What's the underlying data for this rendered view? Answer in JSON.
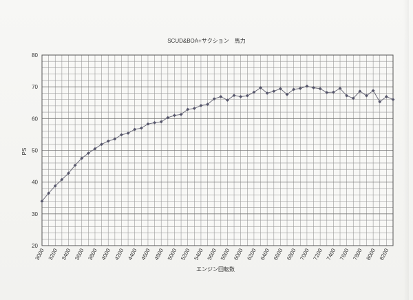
{
  "chart_data": {
    "type": "line",
    "title": "SCUD&BOA+サクション　馬力",
    "xlabel": "エンジン回転数",
    "ylabel": "PS",
    "xlim": [
      3000,
      8300
    ],
    "ylim": [
      20,
      80
    ],
    "grid": true,
    "x_tick_labels": [
      "3000",
      "3200",
      "3400",
      "3600",
      "3800",
      "4000",
      "4200",
      "4400",
      "4600",
      "4800",
      "5000",
      "5200",
      "5400",
      "5600",
      "5800",
      "6000",
      "6200",
      "6400",
      "6600",
      "6800",
      "7000",
      "7200",
      "7400",
      "7600",
      "7800",
      "8000",
      "8200"
    ],
    "y_tick_labels": [
      "20",
      "30",
      "40",
      "50",
      "60",
      "70",
      "80"
    ],
    "x": [
      3000,
      3100,
      3200,
      3300,
      3400,
      3500,
      3600,
      3700,
      3800,
      3900,
      4000,
      4100,
      4200,
      4300,
      4400,
      4500,
      4600,
      4700,
      4800,
      4900,
      5000,
      5100,
      5200,
      5300,
      5400,
      5500,
      5600,
      5700,
      5800,
      5900,
      6000,
      6100,
      6200,
      6300,
      6400,
      6500,
      6600,
      6700,
      6800,
      6900,
      7000,
      7100,
      7200,
      7300,
      7400,
      7500,
      7600,
      7700,
      7800,
      7900,
      8000,
      8100,
      8200,
      8300
    ],
    "values": [
      34.0,
      36.5,
      38.8,
      40.8,
      42.8,
      45.3,
      47.5,
      49.1,
      50.5,
      51.9,
      52.9,
      53.6,
      54.9,
      55.4,
      56.6,
      57.0,
      58.3,
      58.7,
      59.0,
      60.3,
      61.0,
      61.3,
      62.9,
      63.2,
      64.1,
      64.5,
      66.2,
      66.9,
      65.8,
      67.3,
      66.9,
      67.2,
      68.3,
      69.7,
      68.0,
      68.6,
      69.4,
      67.6,
      69.2,
      69.5,
      70.2,
      69.7,
      69.4,
      68.2,
      68.3,
      69.5,
      67.2,
      66.4,
      68.6,
      67.2,
      68.8,
      65.3,
      66.9,
      66.0
    ],
    "colors": {
      "line": "#6a6a78",
      "marker": "#55556a",
      "grid": "#9a9a9a",
      "frame": "#555555"
    }
  }
}
